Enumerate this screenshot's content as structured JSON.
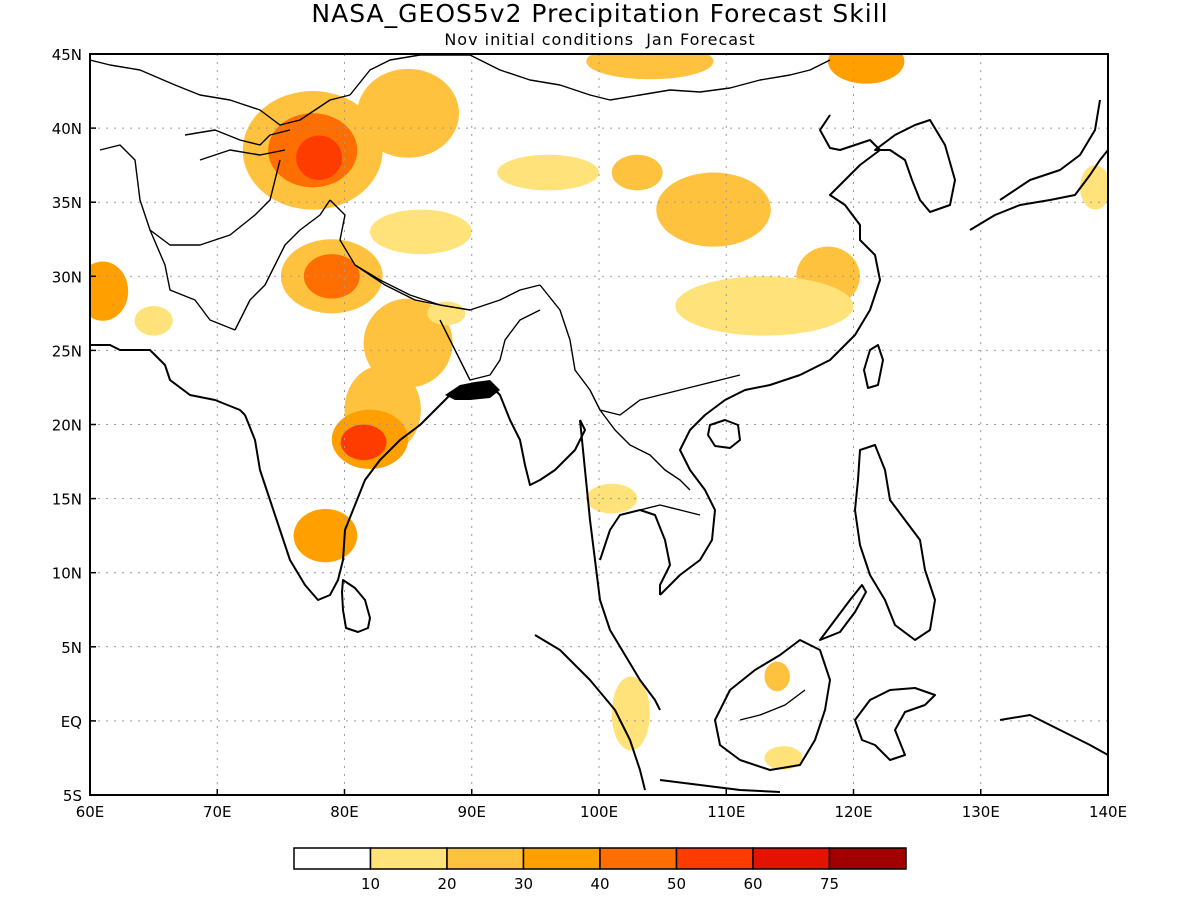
{
  "title": "NASA_GEOS5v2 Precipitation Forecast Skill",
  "subtitle": "Nov initial conditions  Jan Forecast",
  "map": {
    "lon_range": [
      60,
      140
    ],
    "lat_range": [
      -5,
      45
    ],
    "lon_ticks": [
      {
        "value": 60,
        "label": "60E"
      },
      {
        "value": 70,
        "label": "70E"
      },
      {
        "value": 80,
        "label": "80E"
      },
      {
        "value": 90,
        "label": "90E"
      },
      {
        "value": 100,
        "label": "100E"
      },
      {
        "value": 110,
        "label": "110E"
      },
      {
        "value": 120,
        "label": "120E"
      },
      {
        "value": 130,
        "label": "130E"
      },
      {
        "value": 140,
        "label": "140E"
      }
    ],
    "lat_ticks": [
      {
        "value": 45,
        "label": "45N"
      },
      {
        "value": 40,
        "label": "40N"
      },
      {
        "value": 35,
        "label": "35N"
      },
      {
        "value": 30,
        "label": "30N"
      },
      {
        "value": 25,
        "label": "25N"
      },
      {
        "value": 20,
        "label": "20N"
      },
      {
        "value": 15,
        "label": "15N"
      },
      {
        "value": 10,
        "label": "10N"
      },
      {
        "value": 5,
        "label": "5N"
      },
      {
        "value": 0,
        "label": "EQ"
      },
      {
        "value": -5,
        "label": "5S"
      }
    ],
    "grid": "dotted"
  },
  "colorbar": {
    "levels": [
      "10",
      "20",
      "30",
      "40",
      "50",
      "60",
      "75"
    ],
    "colors": [
      "#ffffff",
      "#ffe27a",
      "#ffc23e",
      "#ffa000",
      "#ff6e00",
      "#ff3c00",
      "#e21400",
      "#a00000"
    ]
  },
  "skill_regions": [
    {
      "lon": 77.5,
      "lat": 38.5,
      "rx": 5.5,
      "ry": 4.0,
      "level": 2
    },
    {
      "lon": 77.5,
      "lat": 38.5,
      "rx": 3.5,
      "ry": 2.5,
      "level": 4
    },
    {
      "lon": 78,
      "lat": 38,
      "rx": 1.8,
      "ry": 1.5,
      "level": 5
    },
    {
      "lon": 85,
      "lat": 41,
      "rx": 4.0,
      "ry": 3.0,
      "level": 2
    },
    {
      "lon": 79,
      "lat": 30,
      "rx": 4.0,
      "ry": 2.5,
      "level": 2
    },
    {
      "lon": 79,
      "lat": 30,
      "rx": 2.2,
      "ry": 1.5,
      "level": 4
    },
    {
      "lon": 85,
      "lat": 25.5,
      "rx": 3.5,
      "ry": 3.0,
      "level": 2
    },
    {
      "lon": 83,
      "lat": 21,
      "rx": 3.0,
      "ry": 3.0,
      "level": 2
    },
    {
      "lon": 82,
      "lat": 19,
      "rx": 3.0,
      "ry": 2.0,
      "level": 3
    },
    {
      "lon": 81.5,
      "lat": 18.8,
      "rx": 1.8,
      "ry": 1.2,
      "level": 5
    },
    {
      "lon": 78.5,
      "lat": 12.5,
      "rx": 2.5,
      "ry": 1.8,
      "level": 3
    },
    {
      "lon": 61,
      "lat": 29,
      "rx": 2.0,
      "ry": 2.0,
      "level": 3
    },
    {
      "lon": 121,
      "lat": 44.5,
      "rx": 3.0,
      "ry": 1.5,
      "level": 3
    },
    {
      "lon": 104,
      "lat": 44.5,
      "rx": 5.0,
      "ry": 1.2,
      "level": 2
    },
    {
      "lon": 109,
      "lat": 34.5,
      "rx": 4.5,
      "ry": 2.5,
      "level": 2
    },
    {
      "lon": 103,
      "lat": 37,
      "rx": 2.0,
      "ry": 1.2,
      "level": 2
    },
    {
      "lon": 96,
      "lat": 37,
      "rx": 4.0,
      "ry": 1.2,
      "level": 1
    },
    {
      "lon": 86,
      "lat": 33,
      "rx": 4.0,
      "ry": 1.5,
      "level": 1
    },
    {
      "lon": 118,
      "lat": 30,
      "rx": 2.5,
      "ry": 2.0,
      "level": 2
    },
    {
      "lon": 113,
      "lat": 28,
      "rx": 7.0,
      "ry": 2.0,
      "level": 1
    },
    {
      "lon": 101,
      "lat": 15,
      "rx": 2.0,
      "ry": 1.0,
      "level": 1
    },
    {
      "lon": 88,
      "lat": 27.5,
      "rx": 1.5,
      "ry": 0.8,
      "level": 1
    },
    {
      "lon": 139,
      "lat": 36,
      "rx": 1.2,
      "ry": 1.5,
      "level": 1
    },
    {
      "lon": 102.5,
      "lat": 0.5,
      "rx": 1.5,
      "ry": 2.5,
      "level": 1
    },
    {
      "lon": 114.5,
      "lat": -2.5,
      "rx": 1.5,
      "ry": 0.8,
      "level": 1
    },
    {
      "lon": 114,
      "lat": 3,
      "rx": 1.0,
      "ry": 1.0,
      "level": 2
    },
    {
      "lon": 65,
      "lat": 27,
      "rx": 1.5,
      "ry": 1.0,
      "level": 1
    }
  ]
}
